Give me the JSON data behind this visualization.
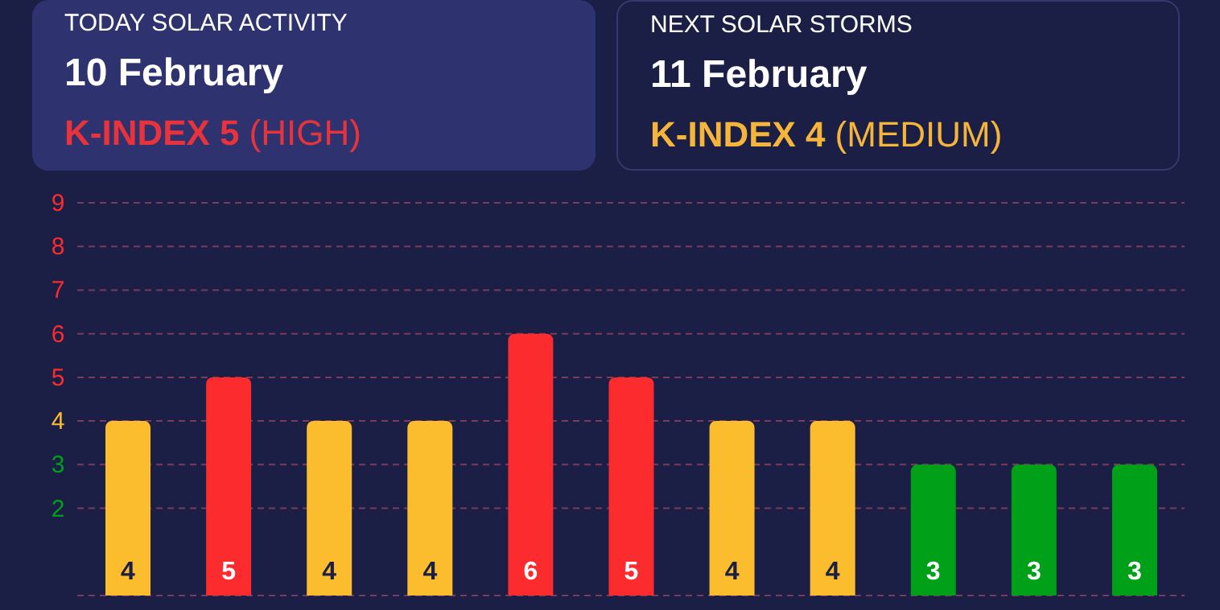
{
  "chart_data": [
    {
      "type": "other",
      "title": "TODAY SOLAR ACTIVITY",
      "subtitle": "10 February",
      "annotations": [
        "K-INDEX 5",
        "(HIGH)"
      ],
      "color": "#e8323c"
    },
    {
      "type": "other",
      "title": "NEXT SOLAR STORMS",
      "subtitle": "11 February",
      "annotations": [
        "K-INDEX 4",
        "(MEDIUM)"
      ],
      "color": "#f4b53a"
    },
    {
      "type": "bar",
      "categories": [
        null,
        null,
        null,
        null,
        null,
        null,
        null,
        null,
        null,
        null,
        null
      ],
      "values": [
        4,
        5,
        4,
        4,
        6,
        5,
        4,
        4,
        3,
        3,
        3
      ],
      "colors": [
        "#fbbd2d",
        "#fb2b2e",
        "#fbbd2d",
        "#fbbd2d",
        "#fb2b2e",
        "#fb2b2e",
        "#fbbd2d",
        "#fbbd2d",
        "#00a019",
        "#00a019",
        "#00a019"
      ],
      "data_labels": true,
      "ylim": [
        0,
        9
      ],
      "yticks": [
        2,
        3,
        4,
        5,
        6,
        7,
        8,
        9
      ],
      "grid": "y"
    }
  ]
}
